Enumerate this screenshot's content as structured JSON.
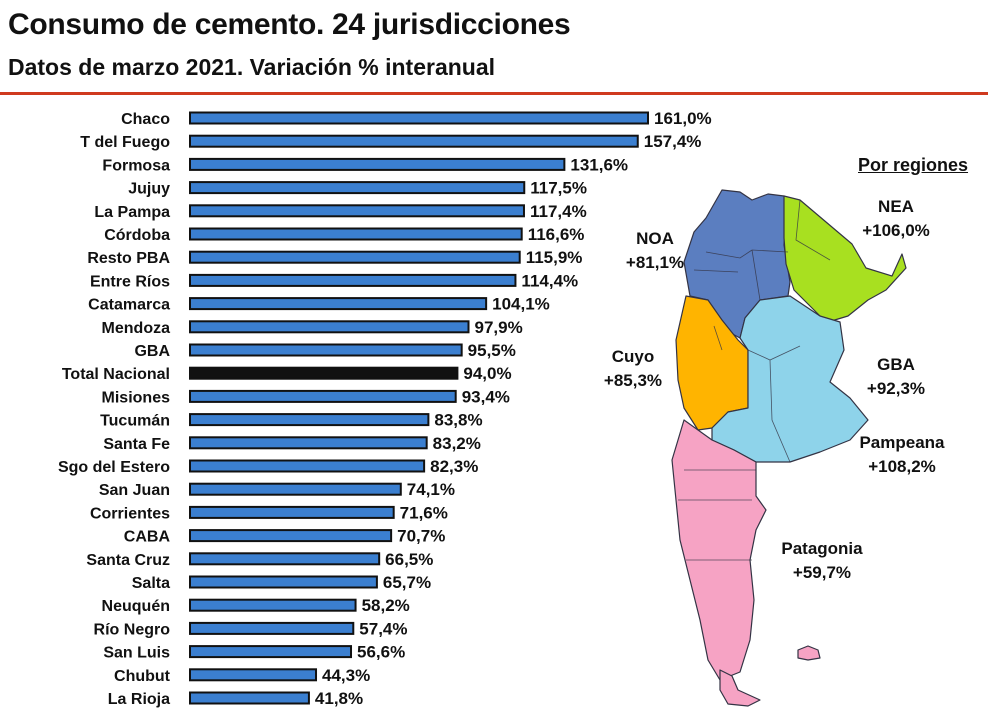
{
  "header": {
    "title": "Consumo de cemento. 24 jurisdicciones",
    "subtitle": "Datos de marzo 2021. Variación % interanual"
  },
  "chart_data": {
    "type": "bar",
    "orientation": "horizontal",
    "categories": [
      "Chaco",
      "T del Fuego",
      "Formosa",
      "Jujuy",
      "La Pampa",
      "Córdoba",
      "Resto PBA",
      "Entre Ríos",
      "Catamarca",
      "Mendoza",
      "GBA",
      "Total Nacional",
      "Misiones",
      "Tucumán",
      "Santa Fe",
      "Sgo del Estero",
      "San Juan",
      "Corrientes",
      "CABA",
      "Santa Cruz",
      "Salta",
      "Neuquén",
      "Río Negro",
      "San Luis",
      "Chubut",
      "La Rioja"
    ],
    "values": [
      161.0,
      157.4,
      131.6,
      117.5,
      117.4,
      116.6,
      115.9,
      114.4,
      104.1,
      97.9,
      95.5,
      94.0,
      93.4,
      83.8,
      83.2,
      82.3,
      74.1,
      71.6,
      70.7,
      66.5,
      65.7,
      58.2,
      57.4,
      56.6,
      44.3,
      41.8
    ],
    "value_labels": [
      "161,0%",
      "157,4%",
      "131,6%",
      "117,5%",
      "117,4%",
      "116,6%",
      "115,9%",
      "114,4%",
      "104,1%",
      "97,9%",
      "95,5%",
      "94,0%",
      "93,4%",
      "83,8%",
      "83,2%",
      "82,3%",
      "74,1%",
      "71,6%",
      "70,7%",
      "66,5%",
      "65,7%",
      "58,2%",
      "57,4%",
      "56,6%",
      "44,3%",
      "41,8%"
    ],
    "highlight": "Total Nacional",
    "bar_color": "#3b7fd0",
    "highlight_color": "#111111",
    "xlim": [
      0,
      161
    ],
    "grid": false
  },
  "regions": {
    "title": "Por regiones",
    "items": [
      {
        "name": "NEA",
        "value": "+106,0%",
        "color": "#a8e020"
      },
      {
        "name": "NOA",
        "value": "+81,1%",
        "color": "#5b7ec0"
      },
      {
        "name": "Cuyo",
        "value": "+85,3%",
        "color": "#ffb400"
      },
      {
        "name": "GBA",
        "value": "+92,3%",
        "color": "#8ed3ea"
      },
      {
        "name": "Pampeana",
        "value": "+108,2%",
        "color": "#8ed3ea"
      },
      {
        "name": "Patagonia",
        "value": "+59,7%",
        "color": "#f6a3c4"
      }
    ]
  }
}
